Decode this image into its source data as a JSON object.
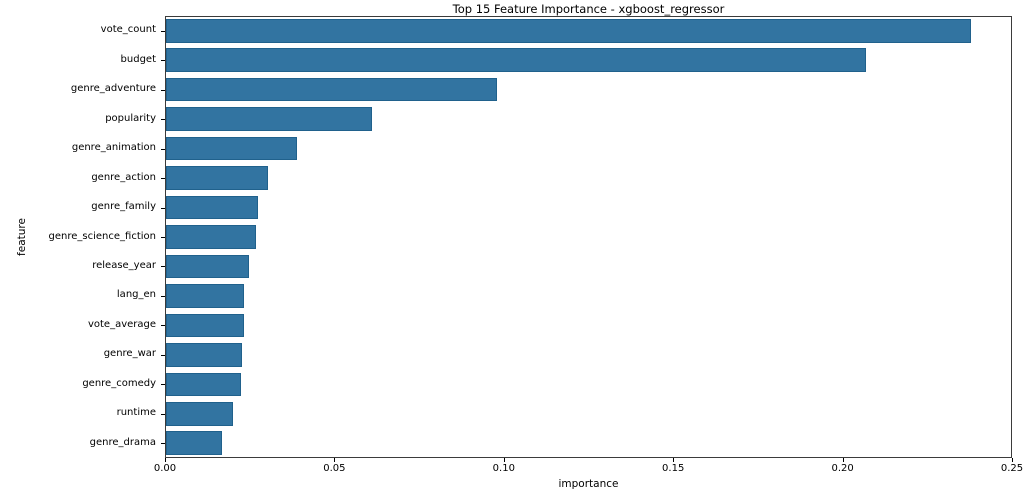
{
  "chart_data": {
    "type": "bar",
    "orientation": "horizontal",
    "title": "Top 15 Feature Importance - xgboost_regressor",
    "xlabel": "importance",
    "ylabel": "feature",
    "categories": [
      "vote_count",
      "budget",
      "genre_adventure",
      "popularity",
      "genre_animation",
      "genre_action",
      "genre_family",
      "genre_science_fiction",
      "release_year",
      "lang_en",
      "vote_average",
      "genre_war",
      "genre_comedy",
      "runtime",
      "genre_drama"
    ],
    "values": [
      0.238,
      0.207,
      0.098,
      0.061,
      0.039,
      0.0305,
      0.0275,
      0.027,
      0.0248,
      0.0234,
      0.0233,
      0.0228,
      0.0224,
      0.0201,
      0.0167
    ],
    "xlim": [
      0,
      0.25
    ],
    "xticks": [
      "0.00",
      "0.05",
      "0.10",
      "0.15",
      "0.20",
      "0.25"
    ],
    "grid": false,
    "legend": null,
    "bar_color": "#3274a1",
    "bar_edge_color": "#20618c",
    "spine_color": "#3b3b3b"
  }
}
